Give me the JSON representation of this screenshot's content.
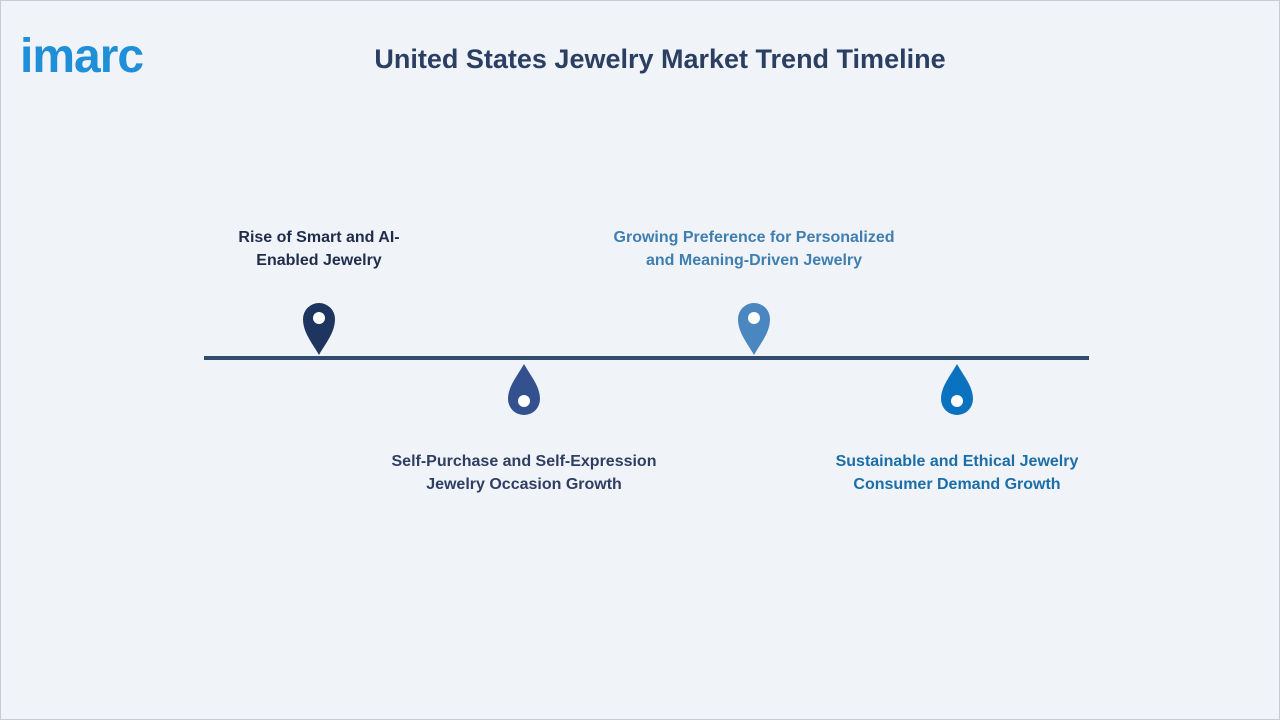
{
  "logo": "imarc",
  "title": "United States Jewelry Market Trend Timeline",
  "milestones": [
    {
      "label": [
        "Rise of Smart and AI-",
        "Enabled Jewelry"
      ]
    },
    {
      "label": [
        "Self-Purchase and Self-Expression",
        "Jewelry Occasion Growth"
      ]
    },
    {
      "label": [
        "Growing Preference for Personalized",
        "and Meaning-Driven Jewelry"
      ]
    },
    {
      "label": [
        "Sustainable and Ethical Jewelry",
        "Consumer Demand Growth"
      ]
    }
  ]
}
